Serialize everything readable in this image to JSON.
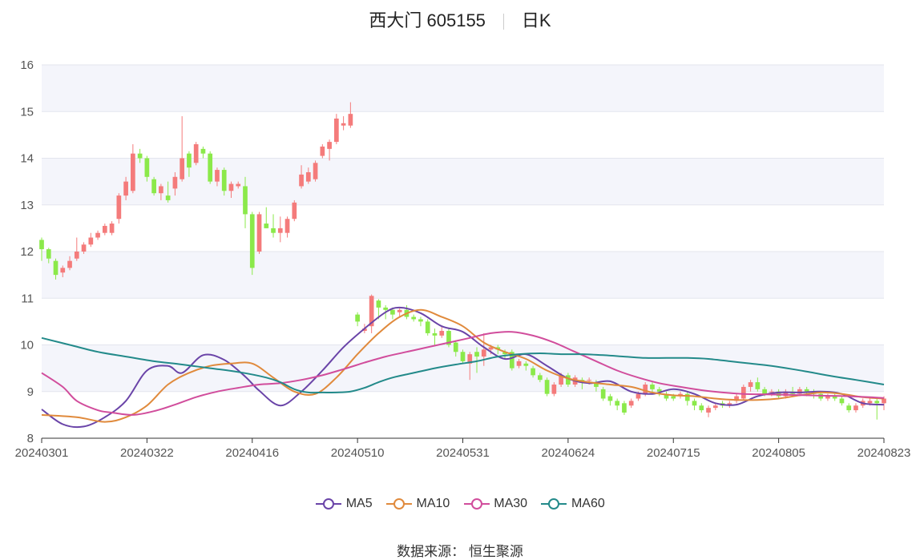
{
  "header": {
    "name_code": "西大门 605155",
    "period": "日K"
  },
  "source": {
    "label": "数据来源：",
    "value": "恒生聚源"
  },
  "colors": {
    "up": "#f47b7b",
    "down": "#8be94a",
    "ma5": "#6a44a8",
    "ma10": "#e08a3c",
    "ma30": "#d14d9c",
    "ma60": "#238a8a",
    "band": "#f4f5fb",
    "grid": "#e3e5ee"
  },
  "chart_data": {
    "type": "candlestick",
    "ylim": [
      8,
      16
    ],
    "yticks": [
      8,
      9,
      10,
      11,
      12,
      13,
      14,
      15,
      16
    ],
    "xtick_labels": [
      "20240301",
      "20240322",
      "20240416",
      "20240510",
      "20240531",
      "20240624",
      "20240715",
      "20240805",
      "20240823"
    ],
    "xtick_index": [
      0,
      15,
      30,
      45,
      60,
      75,
      90,
      105,
      120
    ],
    "n": 121,
    "candles": [
      [
        12.25,
        12.05,
        12.3,
        11.8
      ],
      [
        12.05,
        11.85,
        12.08,
        11.75
      ],
      [
        11.8,
        11.5,
        11.85,
        11.4
      ],
      [
        11.55,
        11.65,
        11.7,
        11.45
      ],
      [
        11.65,
        11.8,
        11.9,
        11.6
      ],
      [
        11.85,
        12.0,
        12.3,
        11.8
      ],
      [
        12.0,
        12.15,
        12.2,
        11.95
      ],
      [
        12.15,
        12.3,
        12.4,
        12.1
      ],
      [
        12.3,
        12.4,
        12.45,
        12.25
      ],
      [
        12.4,
        12.55,
        12.6,
        12.35
      ],
      [
        12.4,
        12.6,
        12.65,
        12.35
      ],
      [
        12.7,
        13.2,
        13.25,
        12.6
      ],
      [
        13.2,
        13.5,
        13.6,
        13.1
      ],
      [
        13.3,
        14.1,
        14.3,
        13.25
      ],
      [
        14.1,
        14.0,
        14.2,
        13.9
      ],
      [
        14.0,
        13.6,
        14.05,
        13.5
      ],
      [
        13.55,
        13.25,
        13.6,
        13.2
      ],
      [
        13.25,
        13.4,
        13.45,
        13.1
      ],
      [
        13.2,
        13.1,
        13.5,
        13.05
      ],
      [
        13.35,
        13.6,
        13.7,
        13.2
      ],
      [
        13.55,
        14.0,
        14.9,
        13.5
      ],
      [
        14.1,
        13.8,
        14.15,
        13.6
      ],
      [
        13.9,
        14.3,
        14.35,
        13.85
      ],
      [
        14.2,
        14.1,
        14.25,
        14.0
      ],
      [
        14.1,
        13.5,
        14.15,
        13.45
      ],
      [
        13.5,
        13.75,
        13.8,
        13.4
      ],
      [
        13.75,
        13.3,
        13.8,
        13.2
      ],
      [
        13.3,
        13.45,
        13.5,
        13.15
      ],
      [
        13.4,
        13.45,
        13.5,
        13.35
      ],
      [
        13.4,
        12.8,
        13.6,
        12.5
      ],
      [
        12.8,
        11.65,
        12.85,
        11.5
      ],
      [
        12.0,
        12.8,
        12.85,
        11.95
      ],
      [
        12.6,
        12.5,
        12.95,
        12.5
      ],
      [
        12.5,
        12.4,
        12.8,
        12.3
      ],
      [
        12.4,
        12.5,
        12.75,
        12.2
      ],
      [
        12.4,
        12.7,
        12.75,
        12.3
      ],
      [
        12.7,
        13.05,
        13.1,
        12.65
      ],
      [
        13.4,
        13.65,
        13.85,
        13.35
      ],
      [
        13.5,
        13.7,
        13.8,
        13.45
      ],
      [
        13.55,
        13.9,
        13.95,
        13.5
      ],
      [
        14.05,
        14.25,
        14.3,
        14.0
      ],
      [
        14.2,
        14.35,
        14.4,
        13.95
      ],
      [
        14.35,
        14.85,
        14.95,
        14.3
      ],
      [
        14.7,
        14.75,
        14.9,
        14.6
      ],
      [
        14.7,
        14.95,
        15.2,
        14.65
      ],
      [
        10.65,
        10.5,
        10.7,
        10.4
      ],
      [
        10.3,
        10.35,
        10.45,
        10.25
      ],
      [
        10.4,
        11.05,
        11.08,
        10.25
      ],
      [
        10.95,
        10.8,
        10.98,
        10.55
      ],
      [
        10.8,
        10.75,
        10.85,
        10.55
      ],
      [
        10.75,
        10.65,
        10.8,
        10.55
      ],
      [
        10.7,
        10.75,
        10.78,
        10.6
      ],
      [
        10.75,
        10.6,
        10.85,
        10.55
      ],
      [
        10.6,
        10.55,
        10.65,
        10.5
      ],
      [
        10.55,
        10.5,
        10.6,
        10.4
      ],
      [
        10.5,
        10.25,
        10.55,
        10.2
      ],
      [
        10.25,
        10.2,
        10.35,
        10.0
      ],
      [
        10.2,
        10.3,
        10.4,
        10.15
      ],
      [
        10.3,
        10.0,
        10.35,
        9.95
      ],
      [
        10.05,
        9.85,
        10.1,
        9.75
      ],
      [
        9.85,
        9.65,
        9.9,
        9.6
      ],
      [
        9.6,
        9.8,
        9.85,
        9.25
      ],
      [
        9.85,
        9.75,
        9.95,
        9.4
      ],
      [
        9.75,
        9.9,
        10.25,
        9.55
      ],
      [
        9.9,
        9.95,
        10.0,
        9.8
      ],
      [
        9.95,
        9.9,
        10.0,
        9.8
      ],
      [
        9.85,
        9.8,
        9.9,
        9.7
      ],
      [
        9.85,
        9.5,
        9.9,
        9.45
      ],
      [
        9.55,
        9.65,
        9.7,
        9.5
      ],
      [
        9.6,
        9.55,
        9.65,
        9.45
      ],
      [
        9.5,
        9.35,
        9.55,
        9.3
      ],
      [
        9.35,
        9.25,
        9.4,
        9.2
      ],
      [
        9.25,
        8.95,
        9.3,
        8.9
      ],
      [
        8.95,
        9.15,
        9.2,
        8.9
      ],
      [
        9.15,
        9.35,
        9.4,
        9.1
      ],
      [
        9.35,
        9.15,
        9.4,
        9.1
      ],
      [
        9.15,
        9.3,
        9.35,
        9.1
      ],
      [
        9.25,
        9.2,
        9.3,
        9.05
      ],
      [
        9.25,
        9.25,
        9.3,
        9.15
      ],
      [
        9.2,
        9.1,
        9.25,
        9.0
      ],
      [
        9.05,
        8.85,
        9.1,
        8.8
      ],
      [
        8.9,
        8.8,
        8.95,
        8.7
      ],
      [
        8.8,
        8.7,
        8.85,
        8.6
      ],
      [
        8.75,
        8.55,
        8.8,
        8.5
      ],
      [
        8.7,
        8.8,
        8.85,
        8.65
      ],
      [
        8.85,
        8.95,
        9.0,
        8.8
      ],
      [
        8.95,
        9.15,
        9.2,
        8.9
      ],
      [
        9.15,
        9.05,
        9.2,
        8.95
      ],
      [
        9.05,
        9.0,
        9.1,
        8.9
      ],
      [
        8.95,
        8.85,
        9.0,
        8.8
      ],
      [
        8.9,
        8.85,
        8.95,
        8.8
      ],
      [
        8.9,
        8.95,
        9.0,
        8.85
      ],
      [
        8.95,
        8.8,
        9.0,
        8.7
      ],
      [
        8.8,
        8.7,
        8.85,
        8.6
      ],
      [
        8.7,
        8.6,
        8.75,
        8.55
      ],
      [
        8.55,
        8.65,
        8.7,
        8.45
      ],
      [
        8.65,
        8.7,
        8.75,
        8.6
      ],
      [
        8.75,
        8.7,
        8.8,
        8.65
      ],
      [
        8.7,
        8.75,
        8.8,
        8.65
      ],
      [
        8.8,
        8.9,
        8.95,
        8.75
      ],
      [
        8.85,
        9.1,
        9.15,
        8.8
      ],
      [
        9.1,
        9.2,
        9.25,
        9.0
      ],
      [
        9.2,
        9.05,
        9.3,
        9.0
      ],
      [
        9.05,
        8.95,
        9.1,
        8.9
      ],
      [
        9.0,
        9.0,
        9.05,
        8.9
      ],
      [
        9.0,
        8.9,
        9.05,
        8.85
      ],
      [
        8.9,
        9.0,
        9.05,
        8.85
      ],
      [
        9.0,
        8.95,
        9.1,
        8.9
      ],
      [
        8.95,
        9.05,
        9.1,
        8.9
      ],
      [
        9.05,
        9.0,
        9.1,
        8.9
      ],
      [
        9.0,
        8.95,
        9.05,
        8.85
      ],
      [
        8.95,
        8.85,
        9.0,
        8.8
      ],
      [
        8.85,
        8.9,
        8.95,
        8.8
      ],
      [
        8.9,
        8.85,
        8.95,
        8.8
      ],
      [
        8.85,
        8.75,
        8.9,
        8.7
      ],
      [
        8.7,
        8.6,
        8.75,
        8.55
      ],
      [
        8.6,
        8.7,
        8.75,
        8.55
      ],
      [
        8.7,
        8.8,
        8.85,
        8.65
      ],
      [
        8.75,
        8.8,
        8.85,
        8.7
      ],
      [
        8.8,
        8.75,
        8.85,
        8.4
      ],
      [
        8.75,
        8.85,
        8.9,
        8.6
      ]
    ],
    "ma_lines": [
      {
        "name": "MA5",
        "color": "#6a44a8",
        "points": [
          [
            0,
            8.62
          ],
          [
            3,
            8.3
          ],
          [
            6,
            8.25
          ],
          [
            9,
            8.45
          ],
          [
            12,
            8.8
          ],
          [
            15,
            9.45
          ],
          [
            18,
            9.55
          ],
          [
            20,
            9.4
          ],
          [
            23,
            9.78
          ],
          [
            26,
            9.68
          ],
          [
            29,
            9.32
          ],
          [
            31,
            9.02
          ],
          [
            34,
            8.7
          ],
          [
            37,
            9.0
          ],
          [
            40,
            9.45
          ],
          [
            43,
            9.95
          ],
          [
            46,
            10.35
          ],
          [
            49,
            10.7
          ],
          [
            51,
            10.8
          ],
          [
            54,
            10.68
          ],
          [
            57,
            10.4
          ],
          [
            60,
            10.28
          ],
          [
            63,
            9.95
          ],
          [
            66,
            9.7
          ],
          [
            69,
            9.8
          ],
          [
            72,
            9.55
          ],
          [
            75,
            9.28
          ],
          [
            78,
            9.18
          ],
          [
            81,
            9.22
          ],
          [
            84,
            9.0
          ],
          [
            87,
            8.95
          ],
          [
            90,
            9.05
          ],
          [
            93,
            8.95
          ],
          [
            96,
            8.75
          ],
          [
            99,
            8.72
          ],
          [
            102,
            8.9
          ],
          [
            105,
            8.98
          ],
          [
            108,
            8.98
          ],
          [
            111,
            9.0
          ],
          [
            114,
            8.95
          ],
          [
            117,
            8.75
          ],
          [
            120,
            8.72
          ]
        ]
      },
      {
        "name": "MA10",
        "color": "#e08a3c",
        "points": [
          [
            0,
            8.5
          ],
          [
            5,
            8.45
          ],
          [
            9,
            8.35
          ],
          [
            12,
            8.45
          ],
          [
            15,
            8.7
          ],
          [
            18,
            9.15
          ],
          [
            21,
            9.4
          ],
          [
            24,
            9.55
          ],
          [
            27,
            9.6
          ],
          [
            30,
            9.6
          ],
          [
            33,
            9.3
          ],
          [
            36,
            9.0
          ],
          [
            39,
            8.95
          ],
          [
            42,
            9.3
          ],
          [
            45,
            9.8
          ],
          [
            48,
            10.25
          ],
          [
            51,
            10.6
          ],
          [
            54,
            10.75
          ],
          [
            57,
            10.6
          ],
          [
            60,
            10.4
          ],
          [
            63,
            10.05
          ],
          [
            66,
            9.85
          ],
          [
            69,
            9.7
          ],
          [
            72,
            9.45
          ],
          [
            75,
            9.28
          ],
          [
            78,
            9.2
          ],
          [
            81,
            9.15
          ],
          [
            84,
            9.1
          ],
          [
            87,
            8.98
          ],
          [
            90,
            8.92
          ],
          [
            93,
            8.9
          ],
          [
            96,
            8.85
          ],
          [
            99,
            8.82
          ],
          [
            102,
            8.82
          ],
          [
            105,
            8.85
          ],
          [
            108,
            8.92
          ],
          [
            111,
            8.98
          ],
          [
            114,
            8.95
          ],
          [
            117,
            8.88
          ],
          [
            120,
            8.85
          ]
        ]
      },
      {
        "name": "MA30",
        "color": "#d14d9c",
        "points": [
          [
            0,
            9.4
          ],
          [
            3,
            9.1
          ],
          [
            5,
            8.8
          ],
          [
            8,
            8.6
          ],
          [
            10,
            8.55
          ],
          [
            13,
            8.5
          ],
          [
            16,
            8.58
          ],
          [
            19,
            8.72
          ],
          [
            22,
            8.88
          ],
          [
            25,
            9.0
          ],
          [
            28,
            9.08
          ],
          [
            31,
            9.15
          ],
          [
            34,
            9.18
          ],
          [
            37,
            9.25
          ],
          [
            40,
            9.35
          ],
          [
            43,
            9.48
          ],
          [
            46,
            9.62
          ],
          [
            49,
            9.75
          ],
          [
            52,
            9.85
          ],
          [
            55,
            9.95
          ],
          [
            58,
            10.05
          ],
          [
            61,
            10.15
          ],
          [
            64,
            10.25
          ],
          [
            67,
            10.28
          ],
          [
            70,
            10.2
          ],
          [
            73,
            10.05
          ],
          [
            76,
            9.85
          ],
          [
            79,
            9.65
          ],
          [
            82,
            9.45
          ],
          [
            85,
            9.3
          ],
          [
            88,
            9.18
          ],
          [
            91,
            9.1
          ],
          [
            94,
            9.03
          ],
          [
            97,
            8.98
          ],
          [
            100,
            8.95
          ],
          [
            103,
            8.94
          ],
          [
            106,
            8.93
          ],
          [
            109,
            8.92
          ],
          [
            112,
            8.91
          ],
          [
            115,
            8.9
          ],
          [
            118,
            8.88
          ],
          [
            120,
            8.86
          ]
        ]
      },
      {
        "name": "MA60",
        "color": "#238a8a",
        "points": [
          [
            0,
            10.15
          ],
          [
            4,
            10.0
          ],
          [
            8,
            9.85
          ],
          [
            12,
            9.75
          ],
          [
            16,
            9.65
          ],
          [
            20,
            9.58
          ],
          [
            24,
            9.5
          ],
          [
            28,
            9.42
          ],
          [
            32,
            9.3
          ],
          [
            34,
            9.2
          ],
          [
            36,
            9.05
          ],
          [
            38,
            8.98
          ],
          [
            40,
            8.98
          ],
          [
            42,
            8.98
          ],
          [
            44,
            9.0
          ],
          [
            46,
            9.08
          ],
          [
            48,
            9.2
          ],
          [
            50,
            9.3
          ],
          [
            53,
            9.4
          ],
          [
            56,
            9.5
          ],
          [
            59,
            9.58
          ],
          [
            62,
            9.65
          ],
          [
            65,
            9.75
          ],
          [
            68,
            9.8
          ],
          [
            71,
            9.82
          ],
          [
            74,
            9.8
          ],
          [
            77,
            9.8
          ],
          [
            80,
            9.78
          ],
          [
            83,
            9.75
          ],
          [
            86,
            9.72
          ],
          [
            89,
            9.72
          ],
          [
            92,
            9.72
          ],
          [
            95,
            9.7
          ],
          [
            98,
            9.65
          ],
          [
            101,
            9.6
          ],
          [
            104,
            9.55
          ],
          [
            107,
            9.48
          ],
          [
            110,
            9.4
          ],
          [
            113,
            9.32
          ],
          [
            116,
            9.25
          ],
          [
            120,
            9.15
          ]
        ]
      }
    ]
  },
  "legend": [
    {
      "label": "MA5",
      "color": "#6a44a8"
    },
    {
      "label": "MA10",
      "color": "#e08a3c"
    },
    {
      "label": "MA30",
      "color": "#d14d9c"
    },
    {
      "label": "MA60",
      "color": "#238a8a"
    }
  ]
}
